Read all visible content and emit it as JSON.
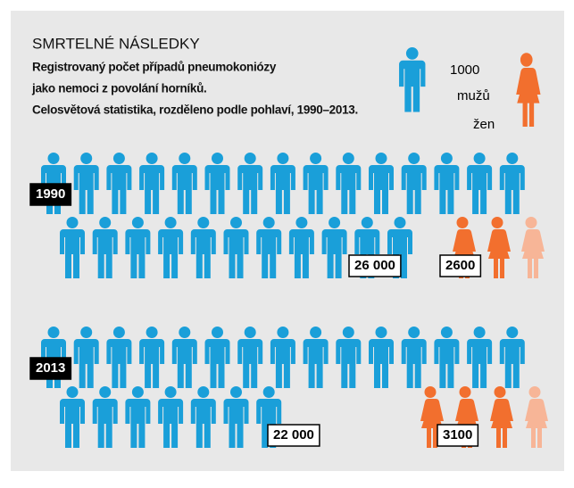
{
  "chart_data": {
    "type": "pictogram",
    "title": "SMRTELNÉ NÁSLEDKY",
    "subtitle": [
      "Registrovaný počet případů pneumokoniózy",
      "jako nemoci z povolání horníků.",
      "Celosvětová statistika, rozděleno podle pohlaví, 1990–2013."
    ],
    "unit": 1000,
    "categories": [
      "1990",
      "2013"
    ],
    "series": [
      {
        "name": "mužů",
        "color": "#1a9fd9",
        "faded_color": "#8fcbea",
        "values": [
          26000,
          22000
        ],
        "value_labels": [
          "26 000",
          "22 000"
        ]
      },
      {
        "name": "žen",
        "color": "#f26f2e",
        "faded_color": "#f7b597",
        "values": [
          2600,
          3100
        ]
      }
    ]
  }
}
